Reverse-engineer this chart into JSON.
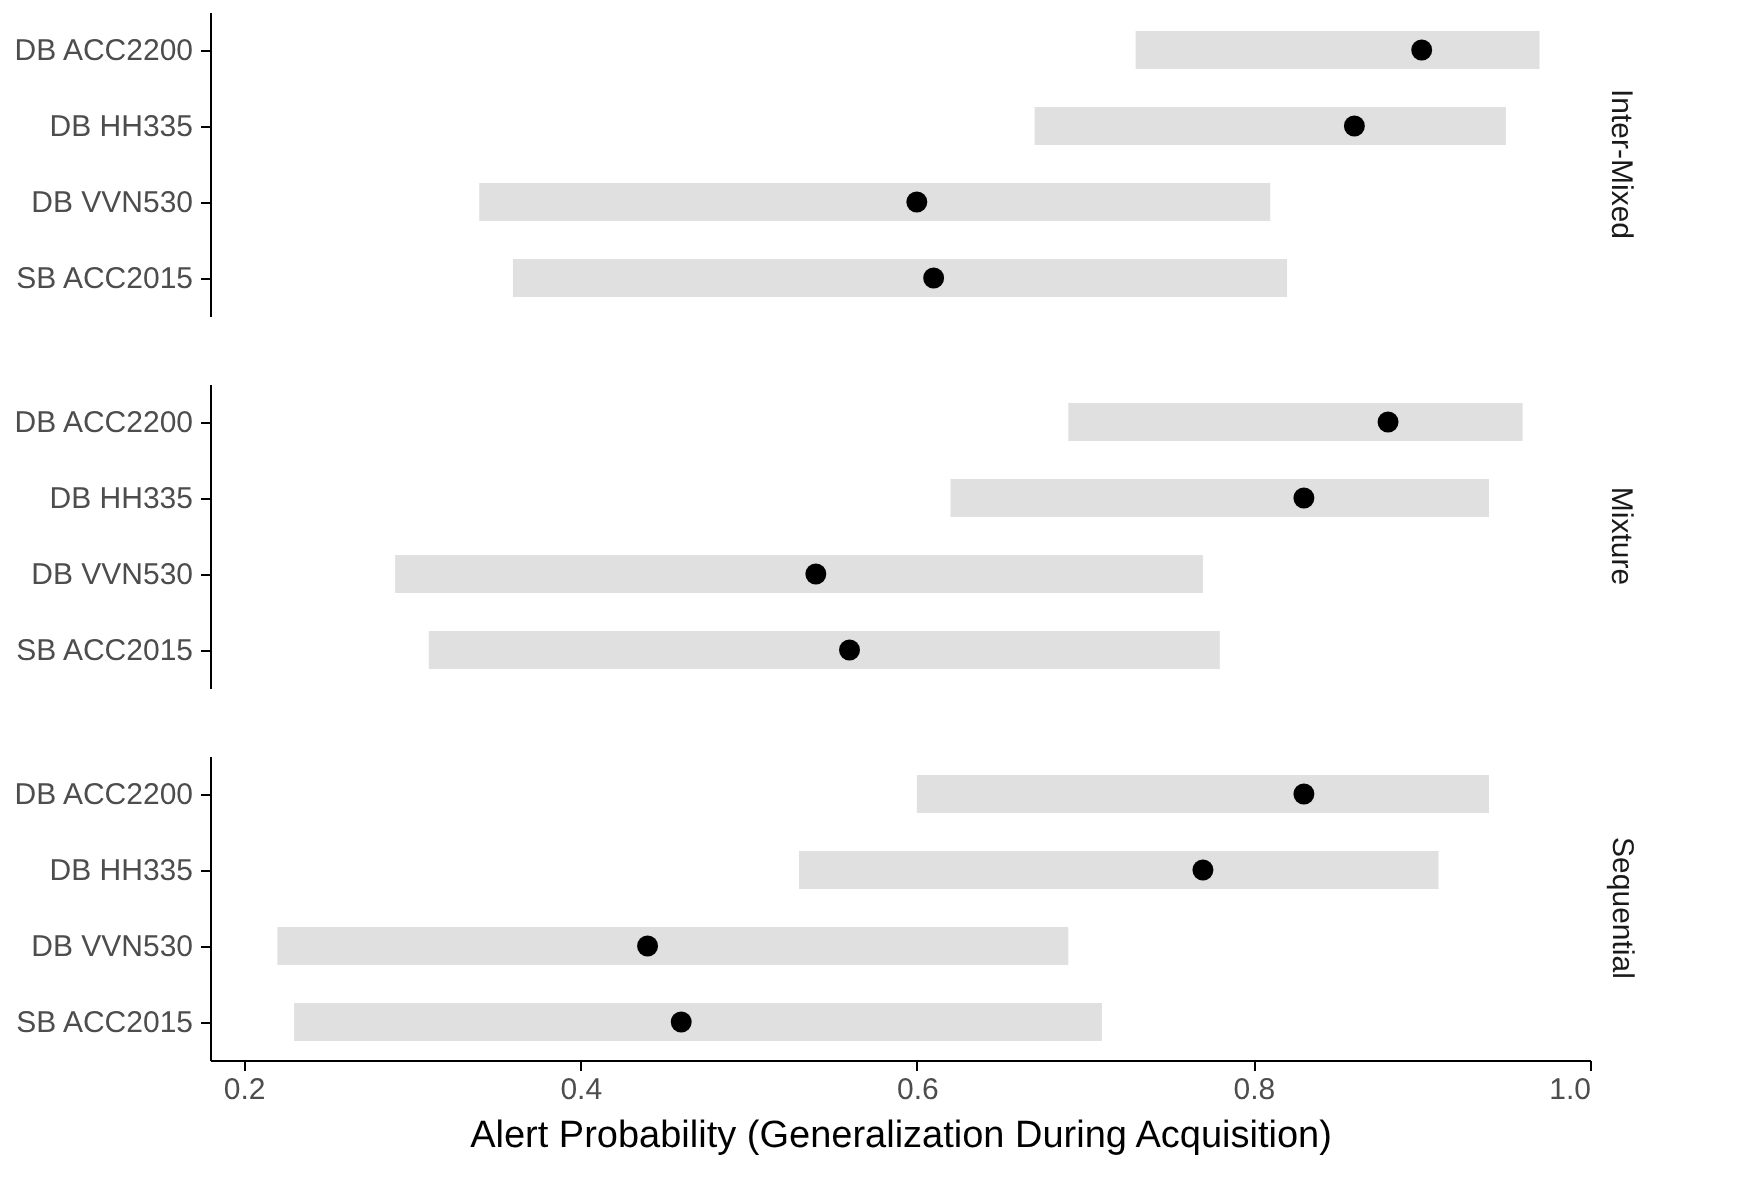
{
  "chart_data": [
    {
      "type": "bar",
      "orientation": "horizontal",
      "title": "Inter-Mixed",
      "categories": [
        "DB ACC2200",
        "DB HH335",
        "DB VVN530",
        "SB ACC2015"
      ],
      "xlim": [
        0.18,
        1.0
      ],
      "tick_labels": "y",
      "series": [
        {
          "type": "bar",
          "color": "#e0e0e0",
          "base": [
            0.73,
            0.67,
            0.34,
            0.36
          ],
          "values": [
            0.24,
            0.28,
            0.47,
            0.46
          ]
        },
        {
          "type": "scatter",
          "color": "#000000",
          "values": [
            0.9,
            0.86,
            0.6,
            0.61
          ]
        }
      ]
    },
    {
      "type": "bar",
      "orientation": "horizontal",
      "title": "Mixture",
      "categories": [
        "DB ACC2200",
        "DB HH335",
        "DB VVN530",
        "SB ACC2015"
      ],
      "xlim": [
        0.18,
        1.0
      ],
      "tick_labels": "y",
      "series": [
        {
          "type": "bar",
          "color": "#e0e0e0",
          "base": [
            0.69,
            0.62,
            0.29,
            0.31
          ],
          "values": [
            0.27,
            0.32,
            0.48,
            0.47
          ]
        },
        {
          "type": "scatter",
          "color": "#000000",
          "values": [
            0.88,
            0.83,
            0.54,
            0.56
          ]
        }
      ]
    },
    {
      "type": "bar",
      "orientation": "horizontal",
      "title": "Sequential",
      "xlabel": "Alert Probability (Generalization During Acquisition)",
      "categories": [
        "DB ACC2200",
        "DB HH335",
        "DB VVN530",
        "SB ACC2015"
      ],
      "xlim": [
        0.18,
        1.0
      ],
      "xticks": [
        0.2,
        0.4,
        0.6,
        0.8,
        {
          "value": 1.0,
          "label": "1.0"
        }
      ],
      "series": [
        {
          "type": "bar",
          "color": "#e0e0e0",
          "base": [
            0.6,
            0.53,
            0.22,
            0.23
          ],
          "values": [
            0.34,
            0.38,
            0.47,
            0.48
          ]
        },
        {
          "type": "scatter",
          "color": "#000000",
          "values": [
            0.83,
            0.77,
            0.44,
            0.46
          ]
        }
      ]
    }
  ]
}
